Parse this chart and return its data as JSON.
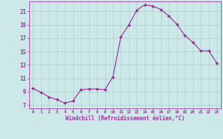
{
  "x": [
    0,
    1,
    2,
    3,
    4,
    5,
    6,
    7,
    8,
    9,
    10,
    11,
    12,
    13,
    14,
    15,
    16,
    17,
    18,
    19,
    20,
    21,
    22,
    23
  ],
  "y": [
    9.5,
    8.9,
    8.2,
    7.8,
    7.3,
    7.6,
    9.3,
    9.4,
    9.4,
    9.3,
    11.2,
    17.2,
    19.0,
    21.2,
    22.0,
    21.8,
    21.3,
    20.3,
    19.1,
    17.4,
    16.4,
    15.1,
    15.1,
    13.3
  ],
  "line_color": "#993399",
  "marker": "D",
  "marker_size": 2.0,
  "linewidth": 0.9,
  "bg_color": "#cce8e8",
  "grid_color": "#aacccc",
  "xlabel": "Windchill (Refroidissement éolien,°C)",
  "xlabel_color": "#993399",
  "tick_color": "#993399",
  "xlim": [
    -0.5,
    23.5
  ],
  "ylim": [
    6.5,
    22.5
  ],
  "yticks": [
    7,
    9,
    11,
    13,
    15,
    17,
    19,
    21
  ],
  "xticks": [
    0,
    1,
    2,
    3,
    4,
    5,
    6,
    7,
    8,
    9,
    10,
    11,
    12,
    13,
    14,
    15,
    16,
    17,
    18,
    19,
    20,
    21,
    22,
    23
  ],
  "figsize": [
    3.2,
    2.0
  ],
  "dpi": 100
}
